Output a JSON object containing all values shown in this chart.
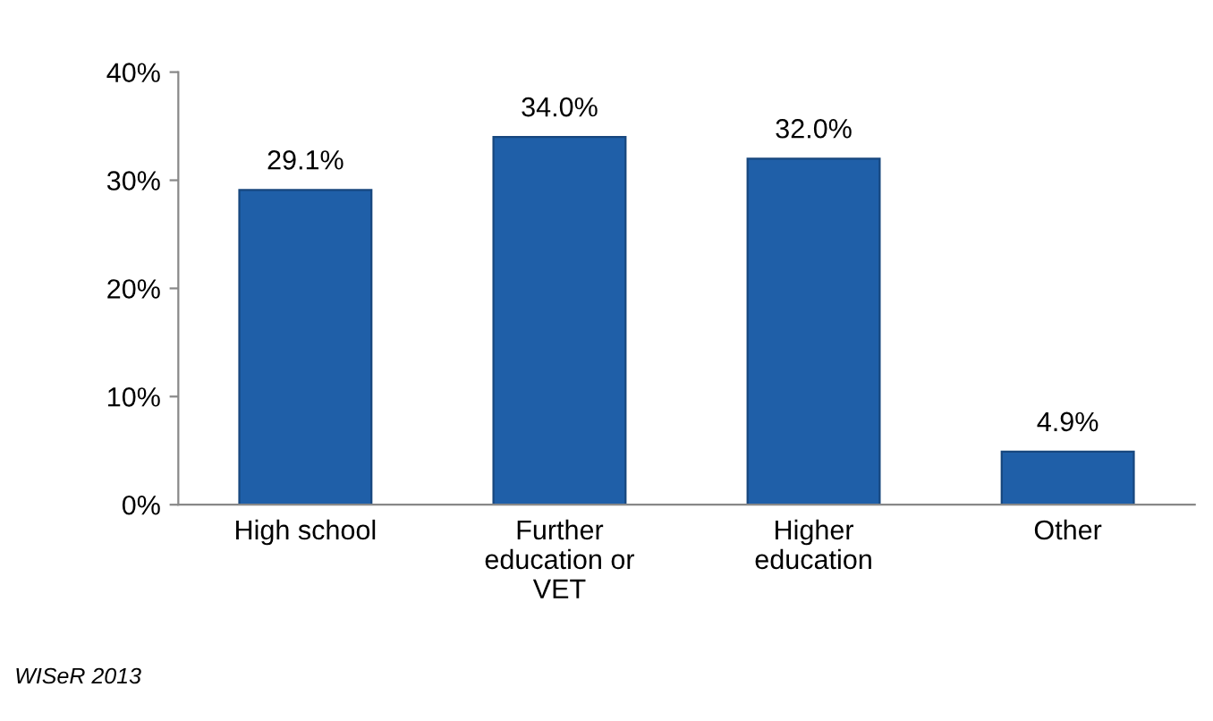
{
  "chart_data": {
    "type": "bar",
    "categories": [
      "High school",
      "Further education or VET",
      "Higher education",
      "Other"
    ],
    "values": [
      29.1,
      34.0,
      32.0,
      4.9
    ],
    "value_labels": [
      "29.1%",
      "34.0%",
      "32.0%",
      "4.9%"
    ],
    "color": "#1f5fa8",
    "ylim": [
      0,
      40
    ],
    "yticks": [
      {
        "value": 0,
        "label": "0%"
      },
      {
        "value": 10,
        "label": "10%"
      },
      {
        "value": 20,
        "label": "20%"
      },
      {
        "value": 30,
        "label": "30%"
      },
      {
        "value": 40,
        "label": "40%"
      }
    ],
    "grid": false,
    "legend": false,
    "annotations": [
      "WISeR 2013"
    ]
  }
}
